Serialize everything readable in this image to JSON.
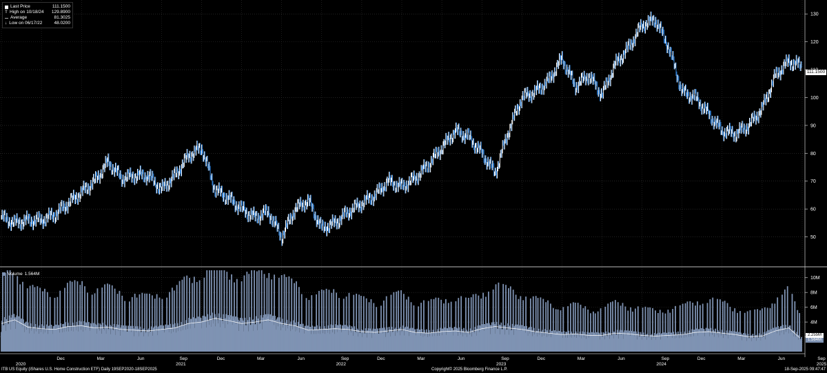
{
  "legend": {
    "last_price_label": "Last Price",
    "last_price_value": "111.1500",
    "high_label": "High on 10/18/24",
    "high_value": "129.8900",
    "average_label": "Average",
    "average_value": "81.3025",
    "low_label": "Low on 06/17/22",
    "low_value": "48.0200"
  },
  "volume_legend": {
    "label": "Volume",
    "value": "1.564M"
  },
  "price_tag": "111.1500",
  "volume_tags": {
    "ma": "2.255M",
    "last": "1.564M"
  },
  "footer": {
    "left": "ITB US Equity (iShares U.S. Home Construction ETF)  Daily 19SEP2020-18SEP2025",
    "center": "Copyright© 2025 Bloomberg Finance L.P.",
    "right": "18-Sep-2025 09:47:47"
  },
  "colors": {
    "background": "#000000",
    "up_bar": "#ffffff",
    "down_bar": "#2f7fd4",
    "volume": "#7f93b3",
    "volume_ma": "#ffffff",
    "grid": "#3a3a3a"
  },
  "chart_data": [
    {
      "type": "line",
      "title": "",
      "ylim": [
        40,
        135
      ],
      "y_ticks": [
        50,
        60,
        70,
        80,
        90,
        100,
        110,
        120,
        130
      ],
      "grid": true,
      "legend_position": "top-left",
      "x": [
        "2020-09",
        "2020-10",
        "2020-11",
        "2020-12",
        "2021-01",
        "2021-02",
        "2021-03",
        "2021-04",
        "2021-05",
        "2021-06",
        "2021-07",
        "2021-08",
        "2021-09",
        "2021-10",
        "2021-11",
        "2021-12",
        "2022-01",
        "2022-02",
        "2022-03",
        "2022-04",
        "2022-05",
        "2022-06",
        "2022-07",
        "2022-08",
        "2022-09",
        "2022-10",
        "2022-11",
        "2022-12",
        "2023-01",
        "2023-02",
        "2023-03",
        "2023-04",
        "2023-05",
        "2023-06",
        "2023-07",
        "2023-08",
        "2023-09",
        "2023-10",
        "2023-11",
        "2023-12",
        "2024-01",
        "2024-02",
        "2024-03",
        "2024-04",
        "2024-05",
        "2024-06",
        "2024-07",
        "2024-08",
        "2024-09",
        "2024-10",
        "2024-11",
        "2024-12",
        "2025-01",
        "2025-02",
        "2025-03",
        "2025-04",
        "2025-05",
        "2025-06",
        "2025-07",
        "2025-08",
        "2025-09"
      ],
      "series": [
        {
          "values": [
            57,
            55,
            56,
            56,
            58,
            62,
            66,
            70,
            77,
            71,
            72,
            72,
            67,
            72,
            79,
            82,
            67,
            64,
            60,
            57,
            59,
            50,
            60,
            63,
            53,
            55,
            59,
            62,
            65,
            70,
            68,
            71,
            76,
            82,
            88,
            86,
            80,
            73,
            88,
            100,
            102,
            106,
            114,
            104,
            108,
            101,
            112,
            118,
            126,
            128,
            118,
            102,
            100,
            94,
            88,
            87,
            90,
            96,
            108,
            113,
            111.15
          ]
        }
      ],
      "xlabels": [
        "2020",
        "Dec",
        "Mar",
        "Jun",
        "2021",
        "Sep",
        "Dec",
        "Mar",
        "Jun",
        "2022",
        "Sep",
        "Dec",
        "Mar",
        "Jun",
        "2023",
        "Sep",
        "Dec",
        "Mar",
        "Jun",
        "2024",
        "Sep",
        "Dec",
        "Mar",
        "Jun",
        "2025",
        "Sep"
      ]
    },
    {
      "type": "bar",
      "title": "",
      "ylim": [
        0,
        11000000
      ],
      "y_tick_labels": [
        "2M",
        "4M",
        "6M",
        "8M",
        "10M"
      ],
      "y_ticks": [
        2000000,
        4000000,
        6000000,
        8000000,
        10000000
      ],
      "x": [
        "2020-09",
        "2020-10",
        "2020-11",
        "2020-12",
        "2021-01",
        "2021-02",
        "2021-03",
        "2021-04",
        "2021-05",
        "2021-06",
        "2021-07",
        "2021-08",
        "2021-09",
        "2021-10",
        "2021-11",
        "2021-12",
        "2022-01",
        "2022-02",
        "2022-03",
        "2022-04",
        "2022-05",
        "2022-06",
        "2022-07",
        "2022-08",
        "2022-09",
        "2022-10",
        "2022-11",
        "2022-12",
        "2023-01",
        "2023-02",
        "2023-03",
        "2023-04",
        "2023-05",
        "2023-06",
        "2023-07",
        "2023-08",
        "2023-09",
        "2023-10",
        "2023-11",
        "2023-12",
        "2024-01",
        "2024-02",
        "2024-03",
        "2024-04",
        "2024-05",
        "2024-06",
        "2024-07",
        "2024-08",
        "2024-09",
        "2024-10",
        "2024-11",
        "2024-12",
        "2025-01",
        "2025-02",
        "2025-03",
        "2025-04",
        "2025-05",
        "2025-06",
        "2025-07",
        "2025-08",
        "2025-09"
      ],
      "series": [
        {
          "name": "Volume",
          "values": [
            3800000,
            4300000,
            3300000,
            3100000,
            3000000,
            3400000,
            3500000,
            3200000,
            3300000,
            3000000,
            2900000,
            2800000,
            3000000,
            3200000,
            3800000,
            4000000,
            4500000,
            4200000,
            3800000,
            4000000,
            4300000,
            3800000,
            3500000,
            2900000,
            3000000,
            3100000,
            3000000,
            2700000,
            2600000,
            2800000,
            3000000,
            2600000,
            2500000,
            2700000,
            2800000,
            2600000,
            3100000,
            3400000,
            3200000,
            3000000,
            2700000,
            2500000,
            2300000,
            2400000,
            2200000,
            2200000,
            2500000,
            2400000,
            2200000,
            2100000,
            2200000,
            2300000,
            2600000,
            2700000,
            2500000,
            2300000,
            2000000,
            2100000,
            2800000,
            3200000,
            1564000
          ]
        }
      ]
    }
  ]
}
